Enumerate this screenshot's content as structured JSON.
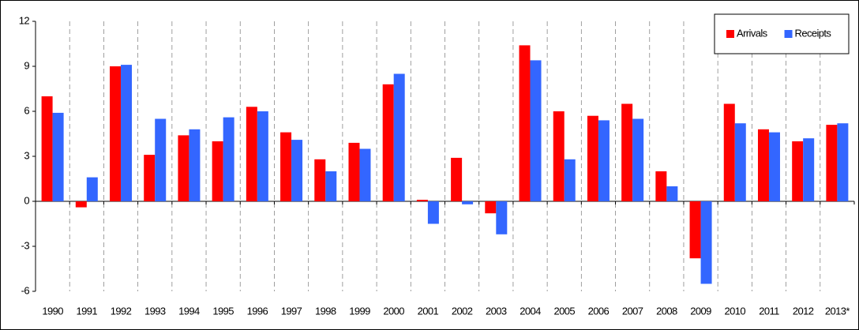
{
  "chart_data": {
    "type": "bar",
    "categories": [
      "1990",
      "1991",
      "1992",
      "1993",
      "1994",
      "1995",
      "1996",
      "1997",
      "1998",
      "1999",
      "2000",
      "2001",
      "2002",
      "2003",
      "2004",
      "2005",
      "2006",
      "2007",
      "2008",
      "2009",
      "2010",
      "2011",
      "2012",
      "2013*"
    ],
    "series": [
      {
        "name": "Arrivals",
        "color": "#ff0000",
        "values": [
          7.0,
          -0.4,
          9.0,
          3.1,
          4.4,
          4.0,
          6.3,
          4.6,
          2.8,
          3.9,
          7.8,
          0.1,
          2.9,
          -0.8,
          10.4,
          6.0,
          5.7,
          6.5,
          2.0,
          -3.8,
          6.5,
          4.8,
          4.0,
          5.1
        ]
      },
      {
        "name": "Receipts",
        "color": "#3366ff",
        "values": [
          5.9,
          1.6,
          9.1,
          5.5,
          4.8,
          5.6,
          6.0,
          4.1,
          2.0,
          3.5,
          8.5,
          -1.5,
          -0.2,
          -2.2,
          9.4,
          2.8,
          5.4,
          5.5,
          1.0,
          -5.5,
          5.2,
          4.6,
          4.2,
          5.2
        ]
      }
    ],
    "ylim": [
      -6,
      12
    ],
    "yticks": [
      -6,
      -3,
      0,
      3,
      6,
      9,
      12
    ],
    "legend": "top-right"
  }
}
